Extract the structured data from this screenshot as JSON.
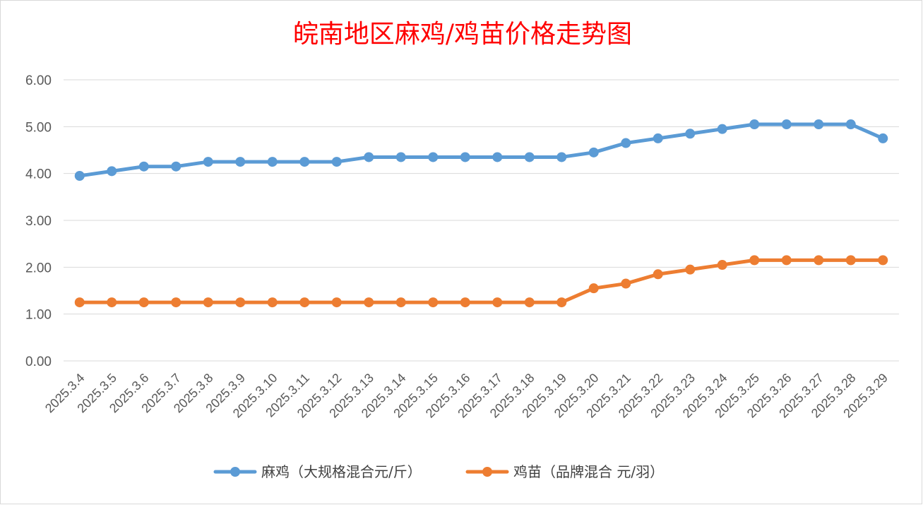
{
  "chart_data": {
    "type": "line",
    "title": "皖南地区麻鸡/鸡苗价格走势图",
    "xlabel": "",
    "ylabel": "",
    "ylim": [
      0,
      6
    ],
    "yticks": [
      "0.00",
      "1.00",
      "2.00",
      "3.00",
      "4.00",
      "5.00",
      "6.00"
    ],
    "grid": true,
    "legend_position": "bottom",
    "categories": [
      "2025.3.4",
      "2025.3.5",
      "2025.3.6",
      "2025.3.7",
      "2025.3.8",
      "2025.3.9",
      "2025.3.10",
      "2025.3.11",
      "2025.3.12",
      "2025.3.13",
      "2025.3.14",
      "2025.3.15",
      "2025.3.16",
      "2025.3.17",
      "2025.3.18",
      "2025.3.19",
      "2025.3.20",
      "2025.3.21",
      "2025.3.22",
      "2025.3.23",
      "2025.3.24",
      "2025.3.25",
      "2025.3.26",
      "2025.3.27",
      "2025.3.28",
      "2025.3.29"
    ],
    "series": [
      {
        "name": "麻鸡（大规格混合元/斤）",
        "color": "#5b9bd5",
        "values": [
          3.95,
          4.05,
          4.15,
          4.15,
          4.25,
          4.25,
          4.25,
          4.25,
          4.25,
          4.35,
          4.35,
          4.35,
          4.35,
          4.35,
          4.35,
          4.35,
          4.45,
          4.65,
          4.75,
          4.85,
          4.95,
          5.05,
          5.05,
          5.05,
          5.05,
          4.75
        ]
      },
      {
        "name": "鸡苗（品牌混合 元/羽）",
        "color": "#ed7d31",
        "values": [
          1.25,
          1.25,
          1.25,
          1.25,
          1.25,
          1.25,
          1.25,
          1.25,
          1.25,
          1.25,
          1.25,
          1.25,
          1.25,
          1.25,
          1.25,
          1.25,
          1.55,
          1.65,
          1.85,
          1.95,
          2.05,
          2.15,
          2.15,
          2.15,
          2.15,
          2.15
        ]
      }
    ]
  }
}
